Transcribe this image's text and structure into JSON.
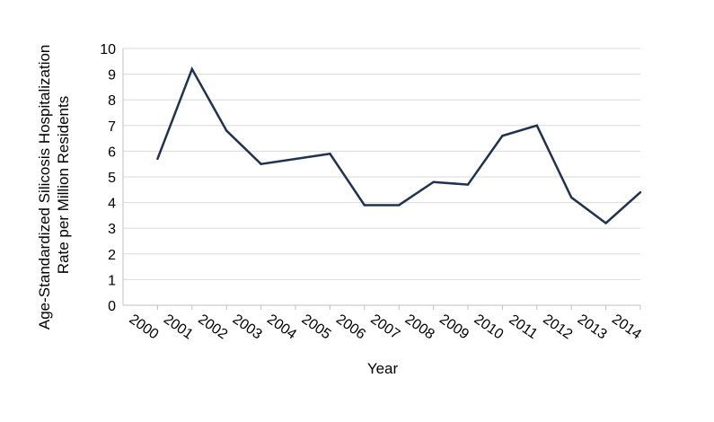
{
  "chart_data": {
    "type": "line",
    "title": "",
    "xlabel": "Year",
    "ylabel_lines": [
      "Age-Standardized Silicosis Hospitalization",
      "Rate per Million Residents"
    ],
    "categories": [
      "2000",
      "2001",
      "2002",
      "2003",
      "2004",
      "2005",
      "2006",
      "2007",
      "2008",
      "2009",
      "2010",
      "2011",
      "2012",
      "2013",
      "2014"
    ],
    "series": [
      {
        "values": [
          5.7,
          9.2,
          6.8,
          5.5,
          5.7,
          5.9,
          3.9,
          3.9,
          4.8,
          4.7,
          6.6,
          7.0,
          4.2,
          3.2,
          4.4
        ],
        "color": "#1f3250"
      }
    ],
    "y_ticks": [
      "0",
      "1",
      "2",
      "3",
      "4",
      "5",
      "6",
      "7",
      "8",
      "9",
      "10"
    ],
    "ylim": [
      0,
      10
    ],
    "grid": "horizontal",
    "gridline_color": "#d9d9d9",
    "axis_color": "#bfbfbf",
    "legend": "none"
  }
}
